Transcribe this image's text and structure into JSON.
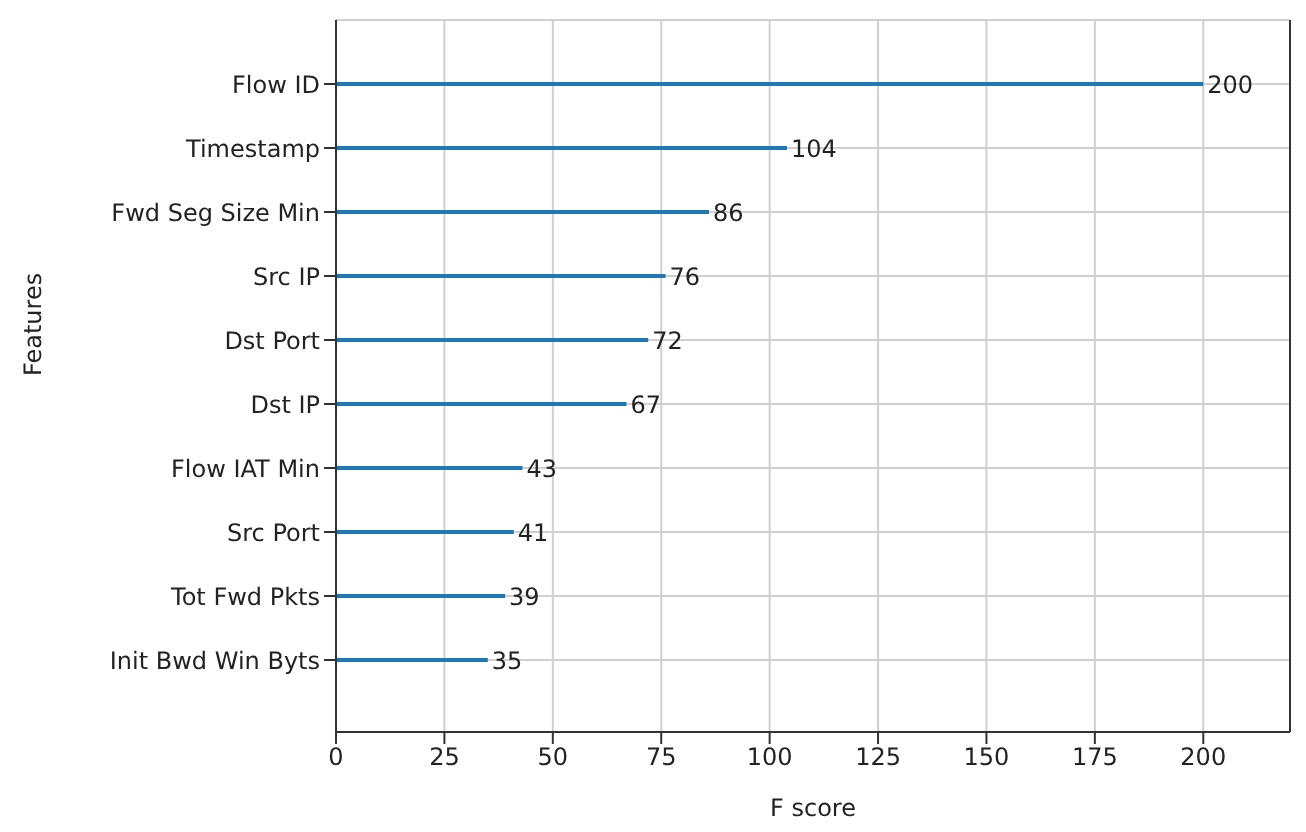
{
  "chart_data": {
    "type": "bar",
    "orientation": "horizontal",
    "xlabel": "F score",
    "ylabel": "Features",
    "categories": [
      "Flow ID",
      "Timestamp",
      "Fwd Seg Size Min",
      "Src IP",
      "Dst Port",
      "Dst IP",
      "Flow IAT Min",
      "Src Port",
      "Tot Fwd Pkts",
      "Init Bwd Win Byts"
    ],
    "values": [
      200,
      104,
      86,
      76,
      72,
      67,
      43,
      41,
      39,
      35
    ],
    "color": "#1f77b4",
    "xlim": [
      0,
      220
    ],
    "xticks": [
      0,
      25,
      50,
      75,
      100,
      125,
      150,
      175,
      200
    ],
    "grid": true,
    "data_labels": true
  }
}
